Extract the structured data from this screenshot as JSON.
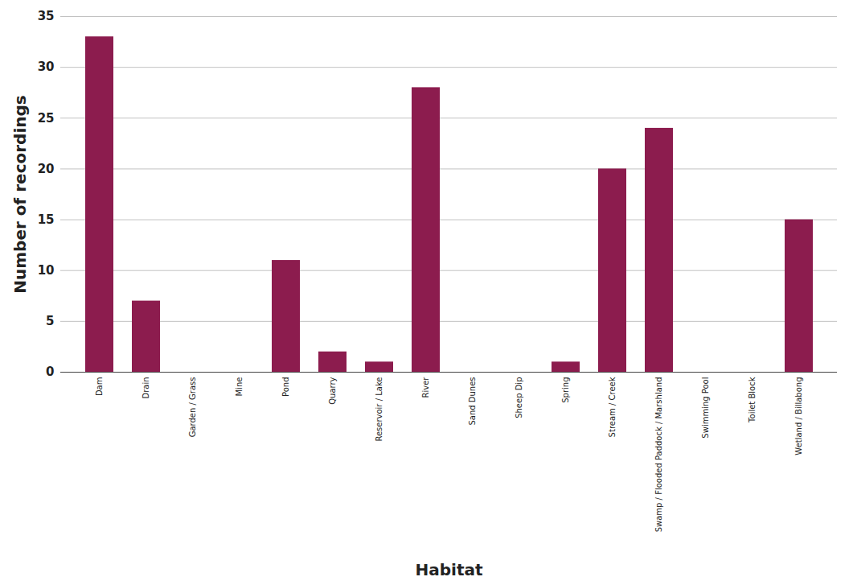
{
  "chart_data": {
    "type": "bar",
    "x_label": "Habitat",
    "y_label": "Number of recordings",
    "categories": [
      "Dam",
      "Drain",
      "Garden / Grass",
      "Mine",
      "Pond",
      "Quarry",
      "Reservoir / Lake",
      "River",
      "Sand Dunes",
      "Sheep Dip",
      "Spring",
      "Stream / Creek",
      "Swamp / Flooded Paddock / Marshland",
      "Swimming Pool",
      "Toilet Block",
      "Wetland / Billabong"
    ],
    "values": [
      33,
      7,
      0,
      0,
      11,
      2,
      1,
      28,
      0,
      0,
      1,
      20,
      24,
      0,
      0,
      15
    ],
    "color": "#8c1c4e",
    "ylim": [
      0,
      35
    ],
    "yticks": [
      0,
      5,
      10,
      15,
      20,
      25,
      30,
      35
    ],
    "grid": true
  }
}
